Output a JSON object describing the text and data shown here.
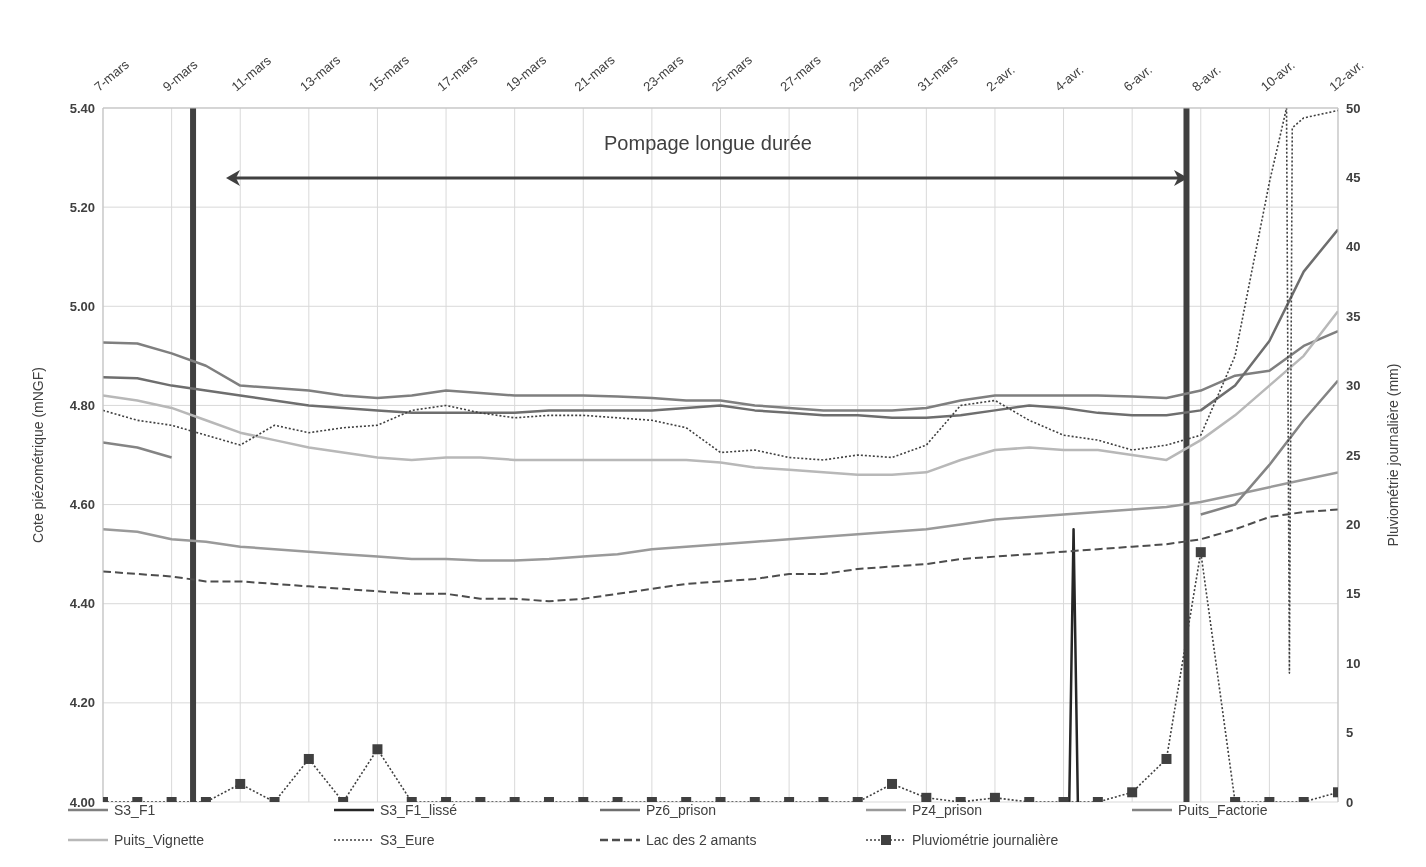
{
  "chart_data": {
    "type": "line",
    "ylabel": "Cote piézométrique (mNGF)",
    "y2label": "Pluviométrie journalière (mm)",
    "x": [
      "--03-07",
      "--03-08",
      "--03-09",
      "--03-10",
      "--03-11",
      "--03-12",
      "--03-13",
      "--03-14",
      "--03-15",
      "--03-16",
      "--03-17",
      "--03-18",
      "--03-19",
      "--03-20",
      "--03-21",
      "--03-22",
      "--03-23",
      "--03-24",
      "--03-25",
      "--03-26",
      "--03-27",
      "--03-28",
      "--03-29",
      "--03-30",
      "--03-31",
      "--04-01",
      "--04-02",
      "--04-03",
      "--04-04",
      "--04-05",
      "--04-06",
      "--04-07",
      "--04-08",
      "--04-09",
      "--04-10",
      "--04-11",
      "--04-12"
    ],
    "xlim": [
      "--03-07",
      "--04-12"
    ],
    "xticks": [
      {
        "value": "--03-07",
        "label": "7-mars"
      },
      {
        "value": "--03-09",
        "label": "9-mars"
      },
      {
        "value": "--03-11",
        "label": "11-mars"
      },
      {
        "value": "--03-13",
        "label": "13-mars"
      },
      {
        "value": "--03-15",
        "label": "15-mars"
      },
      {
        "value": "--03-17",
        "label": "17-mars"
      },
      {
        "value": "--03-19",
        "label": "19-mars"
      },
      {
        "value": "--03-21",
        "label": "21-mars"
      },
      {
        "value": "--03-23",
        "label": "23-mars"
      },
      {
        "value": "--03-25",
        "label": "25-mars"
      },
      {
        "value": "--03-27",
        "label": "27-mars"
      },
      {
        "value": "--03-29",
        "label": "29-mars"
      },
      {
        "value": "--03-31",
        "label": "31-mars"
      },
      {
        "value": "--04-02",
        "label": "2-avr."
      },
      {
        "value": "--04-04",
        "label": "4-avr."
      },
      {
        "value": "--04-06",
        "label": "6-avr."
      },
      {
        "value": "--04-08",
        "label": "8-avr."
      },
      {
        "value": "--04-10",
        "label": "10-avr."
      },
      {
        "value": "--04-12",
        "label": "12-avr."
      }
    ],
    "ylim": [
      4.0,
      5.4
    ],
    "yticks": [
      {
        "value": 4.0,
        "label": "4.00"
      },
      {
        "value": 4.2,
        "label": "4.20"
      },
      {
        "value": 4.4,
        "label": "4.40"
      },
      {
        "value": 4.6,
        "label": "4.60"
      },
      {
        "value": 4.8,
        "label": "4.80"
      },
      {
        "value": 5.0,
        "label": "5.00"
      },
      {
        "value": 5.2,
        "label": "5.20"
      },
      {
        "value": 5.4,
        "label": "5.40"
      }
    ],
    "y2lim": [
      0,
      50
    ],
    "y2ticks": [
      0,
      5,
      10,
      15,
      20,
      25,
      30,
      35,
      40,
      45,
      50
    ],
    "grid": true,
    "legend": "bottom",
    "marker": "none",
    "line_style": "solid",
    "series": [
      {
        "name": "S3_F1",
        "color": "#7f7f7f",
        "values": [
          4.927,
          4.925,
          4.905,
          4.88,
          4.84,
          4.835,
          4.83,
          4.82,
          4.815,
          4.82,
          4.83,
          4.825,
          4.82,
          4.82,
          4.82,
          4.818,
          4.815,
          4.81,
          4.81,
          4.8,
          4.795,
          4.79,
          4.79,
          4.79,
          4.795,
          4.81,
          4.82,
          4.82,
          4.82,
          4.82,
          4.818,
          4.815,
          4.83,
          4.86,
          4.87,
          4.92,
          4.95
        ]
      },
      {
        "name": "S3_F1_lissé",
        "color": "#262626",
        "x": [
          "--04-04T04:00",
          "--04-04T07:00",
          "--04-04T10:00"
        ],
        "values": [
          4.0,
          4.55,
          4.0
        ]
      },
      {
        "name": "Pz6_prison",
        "color": "#6e6e6e",
        "values": [
          4.857,
          4.855,
          4.84,
          4.83,
          4.82,
          4.81,
          4.8,
          4.795,
          4.79,
          4.785,
          4.785,
          4.785,
          4.785,
          4.79,
          4.79,
          4.79,
          4.79,
          4.795,
          4.8,
          4.79,
          4.785,
          4.78,
          4.78,
          4.775,
          4.775,
          4.78,
          4.79,
          4.8,
          4.795,
          4.785,
          4.78,
          4.78,
          4.79,
          4.84,
          4.93,
          5.07,
          5.155
        ]
      },
      {
        "name": "Pz4_prison",
        "color": "#9a9a9a",
        "values": [
          4.55,
          4.545,
          4.53,
          4.525,
          4.515,
          4.51,
          4.505,
          4.5,
          4.495,
          4.49,
          4.49,
          4.487,
          4.487,
          4.49,
          4.495,
          4.5,
          4.51,
          4.515,
          4.52,
          4.525,
          4.53,
          4.535,
          4.54,
          4.545,
          4.55,
          4.56,
          4.57,
          4.575,
          4.58,
          4.585,
          4.59,
          4.595,
          4.605,
          4.62,
          4.635,
          4.65,
          4.665
        ]
      },
      {
        "name": "Puits_Factorie",
        "color": "#848484",
        "values": [
          4.725,
          4.715,
          4.695,
          null,
          null,
          null,
          null,
          null,
          null,
          null,
          null,
          null,
          null,
          null,
          null,
          null,
          null,
          null,
          null,
          null,
          null,
          null,
          null,
          null,
          null,
          null,
          null,
          null,
          null,
          null,
          null,
          null,
          4.58,
          4.6,
          4.68,
          4.77,
          4.85
        ]
      },
      {
        "name": "Puits_Vignette",
        "color": "#b8b8b8",
        "values": [
          4.82,
          4.81,
          4.795,
          4.77,
          4.745,
          4.73,
          4.715,
          4.705,
          4.695,
          4.69,
          4.695,
          4.695,
          4.69,
          4.69,
          4.69,
          4.69,
          4.69,
          4.69,
          4.685,
          4.675,
          4.67,
          4.665,
          4.66,
          4.66,
          4.665,
          4.69,
          4.71,
          4.715,
          4.71,
          4.71,
          4.7,
          4.69,
          4.73,
          4.78,
          4.84,
          4.9,
          4.99
        ]
      },
      {
        "name": "S3_Eure",
        "color": "#404040",
        "line_style": "dotted",
        "x": [
          "--03-07",
          "--03-08",
          "--03-09",
          "--03-10",
          "--03-11",
          "--03-12",
          "--03-13",
          "--03-14",
          "--03-15",
          "--03-16",
          "--03-17",
          "--03-18",
          "--03-19",
          "--03-20",
          "--03-21",
          "--03-22",
          "--03-23",
          "--03-24",
          "--03-25",
          "--03-26",
          "--03-27",
          "--03-28",
          "--03-29",
          "--03-30",
          "--03-31",
          "--04-01",
          "--04-02",
          "--04-03",
          "--04-04",
          "--04-05",
          "--04-06",
          "--04-07",
          "--04-08",
          "--04-09",
          "--04-10",
          "--04-10T12:00",
          "--04-10T14:00",
          "--04-10T16:00",
          "--04-11",
          "--04-12"
        ],
        "values": [
          4.79,
          4.77,
          4.76,
          4.74,
          4.72,
          4.76,
          4.745,
          4.755,
          4.76,
          4.79,
          4.8,
          4.785,
          4.775,
          4.78,
          4.78,
          4.775,
          4.77,
          4.755,
          4.705,
          4.71,
          4.695,
          4.69,
          4.7,
          4.695,
          4.72,
          4.8,
          4.81,
          4.77,
          4.74,
          4.73,
          4.71,
          4.72,
          4.74,
          4.9,
          5.25,
          5.4,
          4.26,
          5.36,
          5.38,
          5.395
        ]
      },
      {
        "name": "Lac des 2 amants",
        "color": "#4d4d4d",
        "line_style": "dashed",
        "values": [
          4.465,
          4.46,
          4.455,
          4.445,
          4.445,
          4.44,
          4.435,
          4.43,
          4.425,
          4.42,
          4.42,
          4.41,
          4.41,
          4.405,
          4.41,
          4.42,
          4.43,
          4.44,
          4.445,
          4.45,
          4.46,
          4.46,
          4.47,
          4.475,
          4.48,
          4.49,
          4.495,
          4.5,
          4.505,
          4.51,
          4.515,
          4.52,
          4.53,
          4.55,
          4.575,
          4.585,
          4.59
        ]
      },
      {
        "name": "Pluviométrie journalière",
        "color": "#404040",
        "axis": "y2",
        "line_style": "dotted",
        "marker": "square",
        "values": [
          0,
          0,
          0,
          0,
          1.3,
          0,
          3.1,
          0,
          3.8,
          0,
          0,
          0,
          0,
          0,
          0,
          0,
          0,
          0,
          0,
          0,
          0,
          0,
          0,
          1.3,
          0.3,
          0,
          0.3,
          0,
          0,
          0,
          0.7,
          3.1,
          18,
          0,
          0,
          0,
          0.7
        ]
      }
    ],
    "ref_lines": [
      {
        "axis": "x",
        "value": "--03-09T15:00",
        "color": "#404040"
      },
      {
        "axis": "x",
        "value": "--04-07T14:00",
        "color": "#404040"
      }
    ],
    "annotations": [
      "Pompage longue durée"
    ]
  }
}
